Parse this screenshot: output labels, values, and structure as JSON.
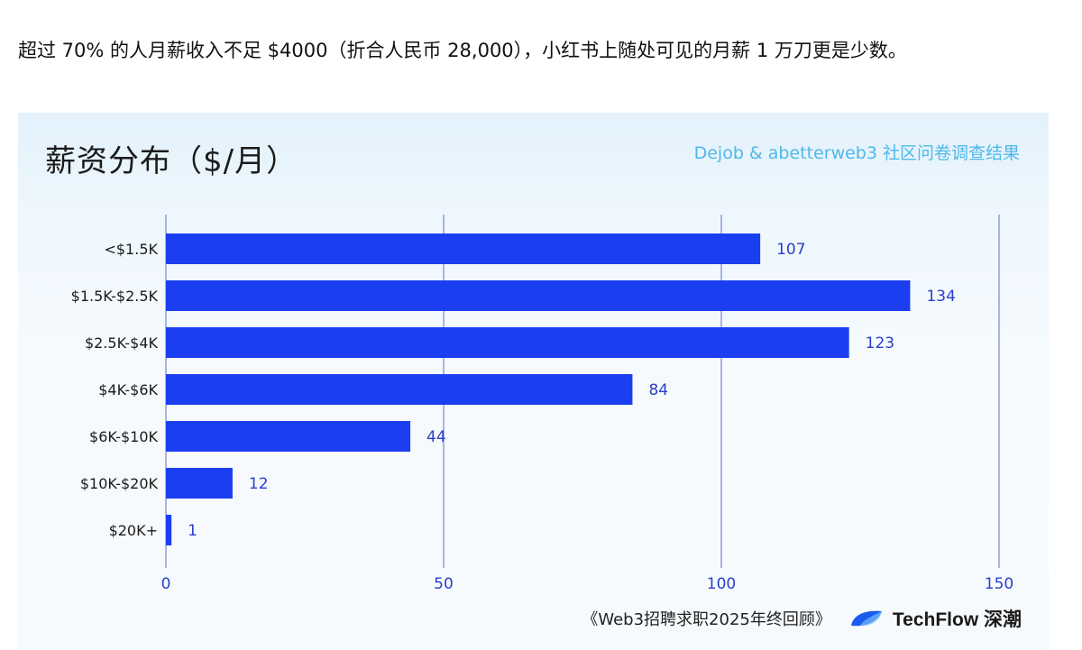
{
  "intro_text": "超过 70% 的人月薪收入不足 $4000（折合人民币 28,000），小红书上随处可见的月薪 1 万刀更是少数。",
  "chart_data": {
    "type": "bar",
    "orientation": "horizontal",
    "title": "薪资分布（$/月）",
    "source": "Dejob & abetterweb3 社区问卷调查结果",
    "categories": [
      "<$1.5K",
      "$1.5K-$2.5K",
      "$2.5K-$4K",
      "$4K-$6K",
      "$6K-$10K",
      "$10K-$20K",
      "$20K+"
    ],
    "values": [
      107,
      134,
      123,
      84,
      44,
      12,
      1
    ],
    "xlim": [
      0,
      150
    ],
    "xticks": [
      0,
      50,
      100,
      150
    ],
    "grid": true,
    "bar_color": "#1a3ef0",
    "label_color": "#2a40c8"
  },
  "footer": {
    "book_title": "《Web3招聘求职2025年终回顾》",
    "brand": "TechFlow 深潮"
  },
  "colors": {
    "bar": "#1a3ef0",
    "grid": "#5a6fd6",
    "tick": "#2a40c8",
    "source": "#4fb8ea"
  }
}
